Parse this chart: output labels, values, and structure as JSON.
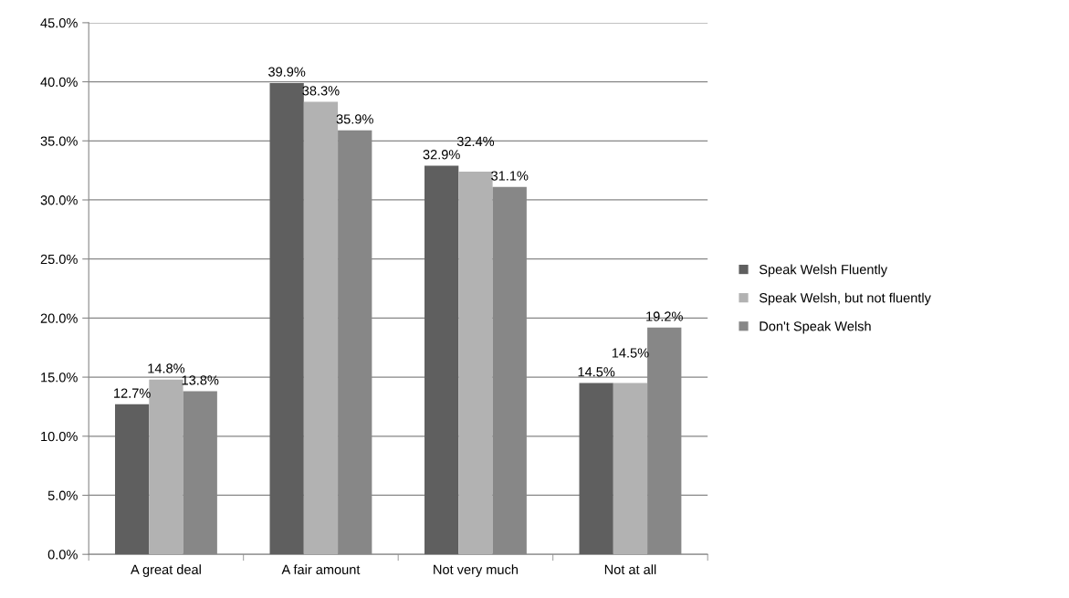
{
  "chart_data": {
    "type": "bar",
    "categories": [
      "A great deal",
      "A fair amount",
      "Not very much",
      "Not at all"
    ],
    "series": [
      {
        "name": "Speak Welsh Fluently",
        "color": "#5f5f5f",
        "values": [
          12.7,
          39.9,
          32.9,
          14.5
        ],
        "value_labels": [
          "12.7%",
          "39.9%",
          "32.9%",
          "14.5%"
        ]
      },
      {
        "name": "Speak Welsh, but not fluently",
        "color": "#b2b2b2",
        "values": [
          14.8,
          38.3,
          32.4,
          14.5
        ],
        "value_labels": [
          "14.8%",
          "38.3%",
          "32.4%",
          "14.5%"
        ]
      },
      {
        "name": "Don't Speak Welsh",
        "color": "#878787",
        "values": [
          13.8,
          35.9,
          31.1,
          19.2
        ],
        "value_labels": [
          "13.8%",
          "35.9%",
          "31.1%",
          "19.2%"
        ]
      }
    ],
    "ylim": [
      0,
      45
    ],
    "yticks": [
      {
        "value": 0,
        "label": "0.0%"
      },
      {
        "value": 5,
        "label": "5.0%"
      },
      {
        "value": 10,
        "label": "10.0%"
      },
      {
        "value": 15,
        "label": "15.0%"
      },
      {
        "value": 20,
        "label": "20.0%"
      },
      {
        "value": 25,
        "label": "25.0%"
      },
      {
        "value": 30,
        "label": "30.0%"
      },
      {
        "value": 35,
        "label": "35.0%"
      },
      {
        "value": 40,
        "label": "40.0%"
      },
      {
        "value": 45,
        "label": "45.0%"
      }
    ],
    "grid": "y",
    "legend": "right"
  }
}
